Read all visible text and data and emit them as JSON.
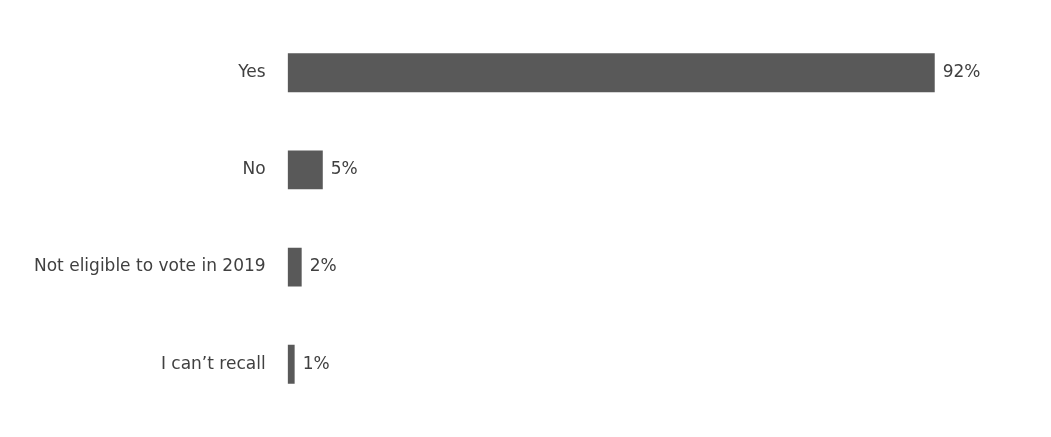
{
  "chart_data": {
    "type": "bar",
    "orientation": "horizontal",
    "categories": [
      "Yes",
      "No",
      "Not eligible to vote in 2019",
      "I can’t recall"
    ],
    "values": [
      92,
      5,
      2,
      1
    ],
    "color": "#595959",
    "value_labels": [
      "92%",
      "5%",
      "2%",
      "1%"
    ],
    "grid": false,
    "legend": false,
    "tick_labels": "y"
  }
}
